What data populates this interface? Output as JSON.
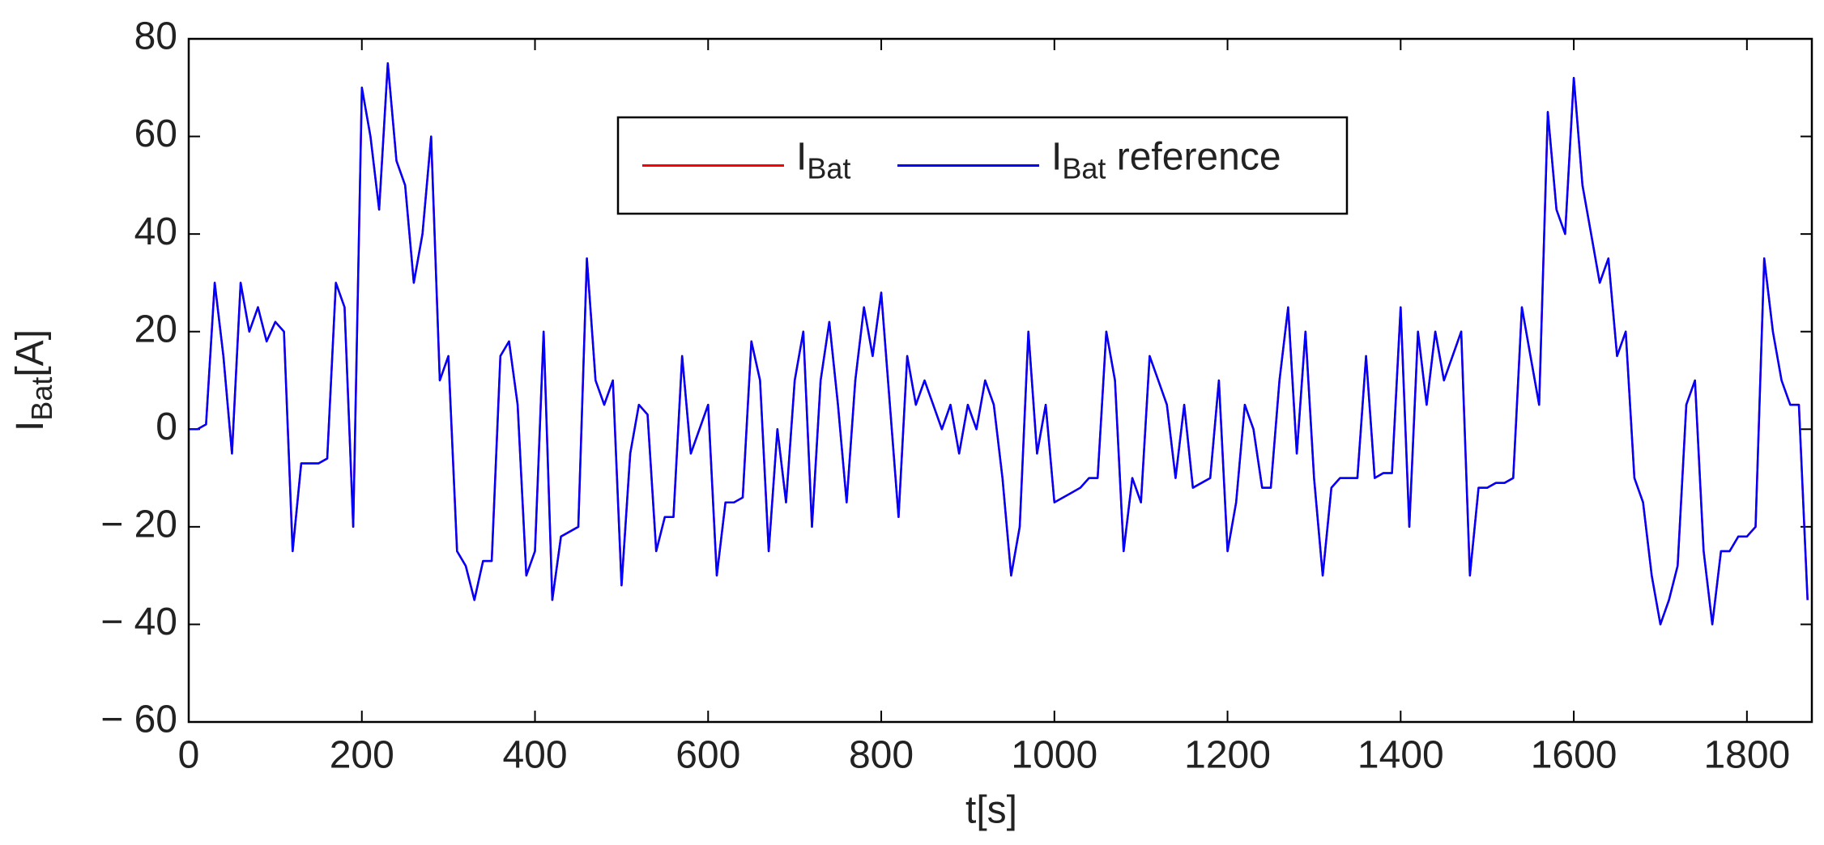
{
  "chart_data": {
    "type": "line",
    "xlabel": "t[s]",
    "ylabel": "IBat[A]",
    "xlim": [
      0,
      1875
    ],
    "ylim": [
      -60,
      80
    ],
    "xticks": [
      0,
      200,
      400,
      600,
      800,
      1000,
      1200,
      1400,
      1600,
      1800
    ],
    "yticks": [
      {
        "value": -60,
        "label": "− 60"
      },
      {
        "value": -40,
        "label": "− 40"
      },
      {
        "value": -20,
        "label": "− 20"
      },
      0,
      20,
      40,
      60,
      80
    ],
    "legend": "upper center",
    "x": [
      0,
      10,
      20,
      30,
      40,
      50,
      60,
      70,
      80,
      90,
      100,
      110,
      120,
      130,
      140,
      150,
      160,
      170,
      180,
      190,
      200,
      210,
      220,
      230,
      240,
      250,
      260,
      270,
      280,
      290,
      300,
      310,
      320,
      330,
      340,
      350,
      360,
      370,
      380,
      390,
      400,
      410,
      420,
      430,
      440,
      450,
      460,
      470,
      480,
      490,
      500,
      510,
      520,
      530,
      540,
      550,
      560,
      570,
      580,
      590,
      600,
      610,
      620,
      630,
      640,
      650,
      660,
      670,
      680,
      690,
      700,
      710,
      720,
      730,
      740,
      750,
      760,
      770,
      780,
      790,
      800,
      810,
      820,
      830,
      840,
      850,
      860,
      870,
      880,
      890,
      900,
      910,
      920,
      930,
      940,
      950,
      960,
      970,
      980,
      990,
      1000,
      1010,
      1020,
      1030,
      1040,
      1050,
      1060,
      1070,
      1080,
      1090,
      1100,
      1110,
      1120,
      1130,
      1140,
      1150,
      1160,
      1170,
      1180,
      1190,
      1200,
      1210,
      1220,
      1230,
      1240,
      1250,
      1260,
      1270,
      1280,
      1290,
      1300,
      1310,
      1320,
      1330,
      1340,
      1350,
      1360,
      1370,
      1380,
      1390,
      1400,
      1410,
      1420,
      1430,
      1440,
      1450,
      1460,
      1470,
      1480,
      1490,
      1500,
      1510,
      1520,
      1530,
      1540,
      1550,
      1560,
      1570,
      1580,
      1590,
      1600,
      1610,
      1620,
      1630,
      1640,
      1650,
      1660,
      1670,
      1680,
      1690,
      1700,
      1710,
      1720,
      1730,
      1740,
      1750,
      1760,
      1770,
      1780,
      1790,
      1800,
      1810,
      1820,
      1830,
      1840,
      1850,
      1860,
      1870
    ],
    "series": [
      {
        "name": "IBat",
        "color": "#ff0000",
        "values": [
          0,
          0,
          1,
          30,
          15,
          -5,
          30,
          20,
          25,
          18,
          22,
          20,
          -25,
          -7,
          -7,
          -7,
          -6,
          30,
          25,
          -20,
          70,
          60,
          45,
          75,
          55,
          50,
          30,
          40,
          60,
          10,
          15,
          -25,
          -28,
          -35,
          -27,
          -27,
          15,
          18,
          5,
          -30,
          -25,
          20,
          -35,
          -22,
          -21,
          -20,
          35,
          10,
          5,
          10,
          -32,
          -5,
          5,
          3,
          -25,
          -18,
          -18,
          15,
          -5,
          0,
          5,
          -30,
          -15,
          -15,
          -14,
          18,
          10,
          -25,
          0,
          -15,
          10,
          20,
          -20,
          10,
          22,
          5,
          -15,
          10,
          25,
          15,
          28,
          5,
          -18,
          15,
          5,
          10,
          5,
          0,
          5,
          -5,
          5,
          0,
          10,
          5,
          -10,
          -30,
          -20,
          20,
          -5,
          5,
          -15,
          -14,
          -13,
          -12,
          -10,
          -10,
          20,
          10,
          -25,
          -10,
          -15,
          15,
          10,
          5,
          -10,
          5,
          -12,
          -11,
          -10,
          10,
          -25,
          -15,
          5,
          0,
          -12,
          -12,
          10,
          25,
          -5,
          20,
          -10,
          -30,
          -12,
          -10,
          -10,
          -10,
          15,
          -10,
          -9,
          -9,
          25,
          -20,
          20,
          5,
          20,
          10,
          15,
          20,
          -30,
          -12,
          -12,
          -11,
          -11,
          -10,
          25,
          15,
          5,
          65,
          45,
          40,
          72,
          50,
          40,
          30,
          35,
          15,
          20,
          -10,
          -15,
          -30,
          -40,
          -35,
          -28,
          5,
          10,
          -25,
          -40,
          -25,
          -25,
          -22,
          -22,
          -20,
          35,
          20,
          10,
          5,
          5,
          -35
        ]
      },
      {
        "name": "IBat reference",
        "color": "#0000ff",
        "values": [
          0,
          0,
          1,
          30,
          15,
          -5,
          30,
          20,
          25,
          18,
          22,
          20,
          -25,
          -7,
          -7,
          -7,
          -6,
          30,
          25,
          -20,
          70,
          60,
          45,
          75,
          55,
          50,
          30,
          40,
          60,
          10,
          15,
          -25,
          -28,
          -35,
          -27,
          -27,
          15,
          18,
          5,
          -30,
          -25,
          20,
          -35,
          -22,
          -21,
          -20,
          35,
          10,
          5,
          10,
          -32,
          -5,
          5,
          3,
          -25,
          -18,
          -18,
          15,
          -5,
          0,
          5,
          -30,
          -15,
          -15,
          -14,
          18,
          10,
          -25,
          0,
          -15,
          10,
          20,
          -20,
          10,
          22,
          5,
          -15,
          10,
          25,
          15,
          28,
          5,
          -18,
          15,
          5,
          10,
          5,
          0,
          5,
          -5,
          5,
          0,
          10,
          5,
          -10,
          -30,
          -20,
          20,
          -5,
          5,
          -15,
          -14,
          -13,
          -12,
          -10,
          -10,
          20,
          10,
          -25,
          -10,
          -15,
          15,
          10,
          5,
          -10,
          5,
          -12,
          -11,
          -10,
          10,
          -25,
          -15,
          5,
          0,
          -12,
          -12,
          10,
          25,
          -5,
          20,
          -10,
          -30,
          -12,
          -10,
          -10,
          -10,
          15,
          -10,
          -9,
          -9,
          25,
          -20,
          20,
          5,
          20,
          10,
          15,
          20,
          -30,
          -12,
          -12,
          -11,
          -11,
          -10,
          25,
          15,
          5,
          65,
          45,
          40,
          72,
          50,
          40,
          30,
          35,
          15,
          20,
          -10,
          -15,
          -30,
          -40,
          -35,
          -28,
          5,
          10,
          -25,
          -40,
          -25,
          -25,
          -22,
          -22,
          -20,
          35,
          20,
          10,
          5,
          5,
          -35
        ]
      }
    ]
  }
}
